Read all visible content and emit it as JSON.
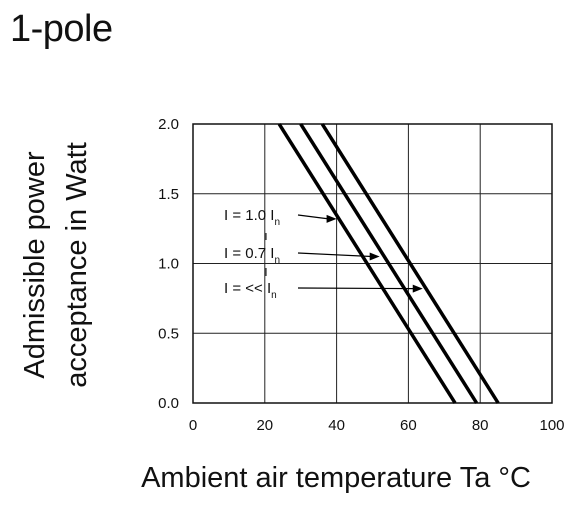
{
  "page": {
    "title": "1-pole"
  },
  "chart_data": {
    "type": "line",
    "title": "1-pole",
    "xlabel": "Ambient air temperature Ta °C",
    "ylabel_lines": [
      "Admissible power",
      "acceptance in Watt"
    ],
    "xlim": [
      0,
      100
    ],
    "ylim": [
      0,
      2.0
    ],
    "x_ticks": [
      0,
      20,
      40,
      60,
      80,
      100
    ],
    "x_tick_labels": [
      "0",
      "20",
      "40",
      "60",
      "80",
      "100"
    ],
    "y_ticks": [
      0,
      0.5,
      1.0,
      1.5,
      2.0
    ],
    "y_tick_labels": [
      "0.0",
      "0.5",
      "1.0",
      "1.5",
      "2.0"
    ],
    "grid": true,
    "series": [
      {
        "name": "I = 1.0 In",
        "label_main": "I = 1.0 I",
        "label_sub": "n",
        "x": [
          24,
          73
        ],
        "y": [
          2.0,
          0.0
        ]
      },
      {
        "name": "I = 0.7 In",
        "label_main": "I = 0.7 I",
        "label_sub": "n",
        "x": [
          30,
          79
        ],
        "y": [
          2.0,
          0.0
        ]
      },
      {
        "name": "I = << In",
        "label_main": "I = << I",
        "label_sub": "n",
        "x": [
          36,
          85
        ],
        "y": [
          2.0,
          0.0
        ]
      }
    ],
    "annotations": [
      {
        "series": 0,
        "arrow_to": [
          40,
          1.32
        ]
      },
      {
        "series": 1,
        "arrow_to": [
          52,
          1.05
        ]
      },
      {
        "series": 2,
        "arrow_to": [
          64,
          0.82
        ]
      }
    ]
  }
}
